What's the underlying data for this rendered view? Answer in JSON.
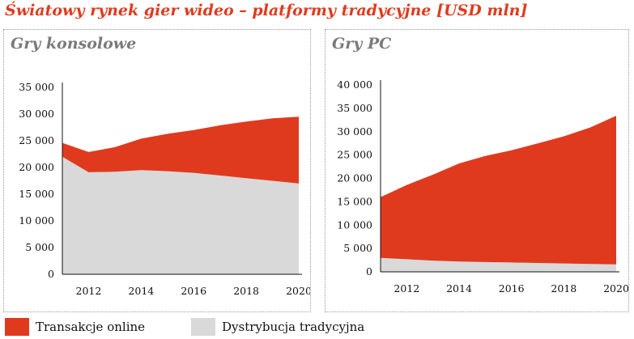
{
  "title": "Światowy rynek gier wideo – platformy tradycyjne [USD mln]",
  "legend": [
    {
      "label": "Transakcje online",
      "color": "#e03a1e"
    },
    {
      "label": "Dystrybucja tradycyjna",
      "color": "#d9d9d9"
    }
  ],
  "chart_data": [
    {
      "type": "area",
      "stacked": true,
      "title": "Gry konsolowe",
      "x": [
        2011,
        2012,
        2013,
        2014,
        2015,
        2016,
        2017,
        2018,
        2019,
        2020
      ],
      "xticks": [
        "2012",
        "2014",
        "2016",
        "2018",
        "2020"
      ],
      "ylim": [
        0,
        35000
      ],
      "yticks": [
        "0",
        "5 000",
        "10 000",
        "15 000",
        "20 000",
        "25 000",
        "30 000",
        "35 000"
      ],
      "series": [
        {
          "name": "Dystrybucja tradycyjna",
          "color": "#d9d9d9",
          "values": [
            22000,
            19100,
            19200,
            19500,
            19300,
            19000,
            18500,
            18000,
            17500,
            17000
          ]
        },
        {
          "name": "Transakcje online",
          "color": "#e03a1e",
          "values": [
            2600,
            3800,
            4600,
            5900,
            7000,
            8000,
            9400,
            10600,
            11700,
            12500
          ]
        }
      ]
    },
    {
      "type": "area",
      "stacked": true,
      "title": "Gry PC",
      "x": [
        2011,
        2012,
        2013,
        2014,
        2015,
        2016,
        2017,
        2018,
        2019,
        2020
      ],
      "xticks": [
        "2012",
        "2014",
        "2016",
        "2018",
        "2020"
      ],
      "ylim": [
        0,
        40000
      ],
      "yticks": [
        "0",
        "5 000",
        "10 000",
        "15 000",
        "20 000",
        "25 000",
        "30 000",
        "35 000",
        "40 000"
      ],
      "series": [
        {
          "name": "Dystrybucja tradycyjna",
          "color": "#d9d9d9",
          "values": [
            3000,
            2700,
            2400,
            2200,
            2100,
            2000,
            1900,
            1800,
            1700,
            1600
          ]
        },
        {
          "name": "Transakcje online",
          "color": "#e03a1e",
          "values": [
            13000,
            15900,
            18400,
            21000,
            22700,
            24000,
            25600,
            27200,
            29200,
            31800
          ]
        }
      ]
    }
  ]
}
